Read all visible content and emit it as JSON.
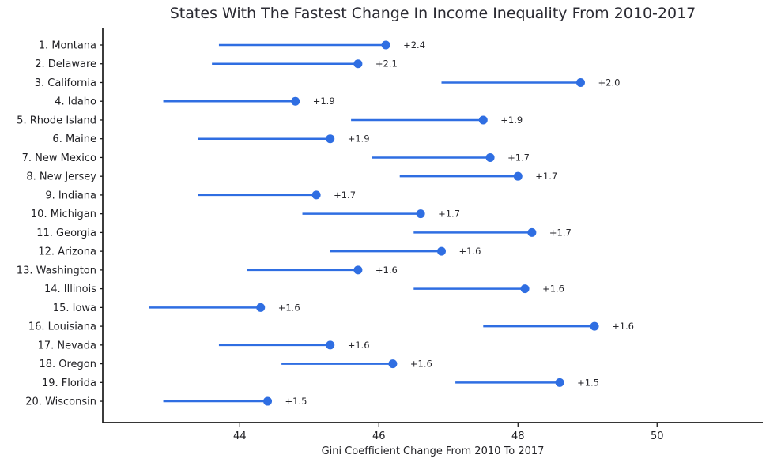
{
  "chart_data": {
    "type": "lollipop-dumbbell",
    "title": "States With The Fastest Change In Income Inequality From 2010-2017",
    "xlabel": "Gini Coefficient Change From 2010 To 2017",
    "ylabel": "",
    "xlim": [
      42.03,
      51.52
    ],
    "xticks": [
      44,
      46,
      48,
      50
    ],
    "grid": false,
    "legend": false,
    "colors": {
      "accent": "#2f6ee2",
      "spine": "#1a1a1a",
      "tick_text": "#1f1f23",
      "title_text": "#2b2b33",
      "background": "#ffffff"
    },
    "value_prefix": "+",
    "rows": [
      {
        "rank": 1,
        "state": "Montana",
        "label": "1. Montana",
        "start_2010": 43.7,
        "end_2017": 46.1,
        "change_label": "+2.4"
      },
      {
        "rank": 2,
        "state": "Delaware",
        "label": "2. Delaware",
        "start_2010": 43.6,
        "end_2017": 45.7,
        "change_label": "+2.1"
      },
      {
        "rank": 3,
        "state": "California",
        "label": "3. California",
        "start_2010": 46.9,
        "end_2017": 48.9,
        "change_label": "+2.0"
      },
      {
        "rank": 4,
        "state": "Idaho",
        "label": "4. Idaho",
        "start_2010": 42.9,
        "end_2017": 44.8,
        "change_label": "+1.9"
      },
      {
        "rank": 5,
        "state": "Rhode Island",
        "label": "5. Rhode Island",
        "start_2010": 45.6,
        "end_2017": 47.5,
        "change_label": "+1.9"
      },
      {
        "rank": 6,
        "state": "Maine",
        "label": "6. Maine",
        "start_2010": 43.4,
        "end_2017": 45.3,
        "change_label": "+1.9"
      },
      {
        "rank": 7,
        "state": "New Mexico",
        "label": "7. New Mexico",
        "start_2010": 45.9,
        "end_2017": 47.6,
        "change_label": "+1.7"
      },
      {
        "rank": 8,
        "state": "New Jersey",
        "label": "8. New Jersey",
        "start_2010": 46.3,
        "end_2017": 48.0,
        "change_label": "+1.7"
      },
      {
        "rank": 9,
        "state": "Indiana",
        "label": "9. Indiana",
        "start_2010": 43.4,
        "end_2017": 45.1,
        "change_label": "+1.7"
      },
      {
        "rank": 10,
        "state": "Michigan",
        "label": "10. Michigan",
        "start_2010": 44.9,
        "end_2017": 46.6,
        "change_label": "+1.7"
      },
      {
        "rank": 11,
        "state": "Georgia",
        "label": "11. Georgia",
        "start_2010": 46.5,
        "end_2017": 48.2,
        "change_label": "+1.7"
      },
      {
        "rank": 12,
        "state": "Arizona",
        "label": "12. Arizona",
        "start_2010": 45.3,
        "end_2017": 46.9,
        "change_label": "+1.6"
      },
      {
        "rank": 13,
        "state": "Washington",
        "label": "13. Washington",
        "start_2010": 44.1,
        "end_2017": 45.7,
        "change_label": "+1.6"
      },
      {
        "rank": 14,
        "state": "Illinois",
        "label": "14. Illinois",
        "start_2010": 46.5,
        "end_2017": 48.1,
        "change_label": "+1.6"
      },
      {
        "rank": 15,
        "state": "Iowa",
        "label": "15. Iowa",
        "start_2010": 42.7,
        "end_2017": 44.3,
        "change_label": "+1.6"
      },
      {
        "rank": 16,
        "state": "Louisiana",
        "label": "16. Louisiana",
        "start_2010": 47.5,
        "end_2017": 49.1,
        "change_label": "+1.6"
      },
      {
        "rank": 17,
        "state": "Nevada",
        "label": "17. Nevada",
        "start_2010": 43.7,
        "end_2017": 45.3,
        "change_label": "+1.6"
      },
      {
        "rank": 18,
        "state": "Oregon",
        "label": "18. Oregon",
        "start_2010": 44.6,
        "end_2017": 46.2,
        "change_label": "+1.6"
      },
      {
        "rank": 19,
        "state": "Florida",
        "label": "19. Florida",
        "start_2010": 47.1,
        "end_2017": 48.6,
        "change_label": "+1.5"
      },
      {
        "rank": 20,
        "state": "Wisconsin",
        "label": "20. Wisconsin",
        "start_2010": 42.9,
        "end_2017": 44.4,
        "change_label": "+1.5"
      }
    ]
  }
}
